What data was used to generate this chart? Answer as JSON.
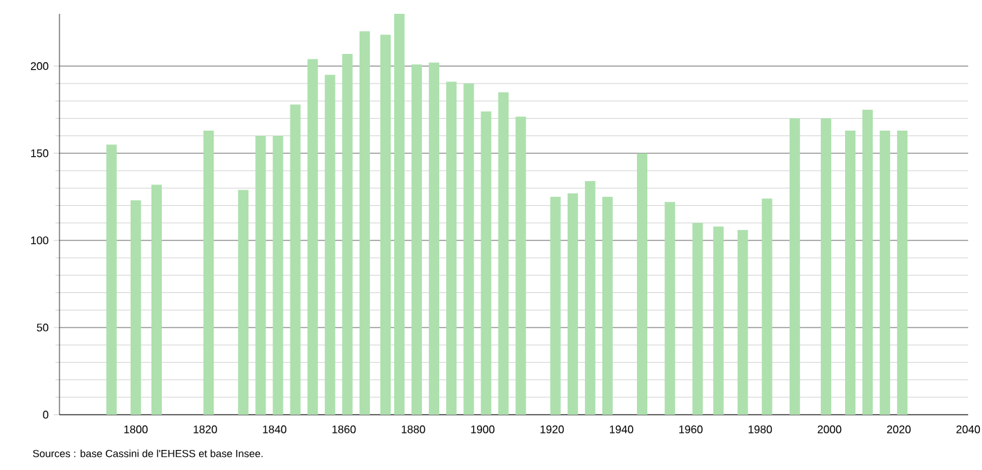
{
  "chart_data": {
    "type": "bar",
    "x": [
      1793,
      1800,
      1806,
      1821,
      1831,
      1836,
      1841,
      1846,
      1851,
      1856,
      1861,
      1866,
      1872,
      1876,
      1881,
      1886,
      1891,
      1896,
      1901,
      1906,
      1911,
      1921,
      1926,
      1931,
      1936,
      1946,
      1954,
      1962,
      1968,
      1975,
      1982,
      1990,
      1999,
      2006,
      2011,
      2016,
      2021
    ],
    "values": [
      155,
      123,
      132,
      163,
      129,
      160,
      160,
      178,
      204,
      195,
      207,
      220,
      218,
      230,
      201,
      202,
      191,
      190,
      174,
      185,
      171,
      125,
      127,
      134,
      125,
      150,
      122,
      110,
      108,
      106,
      124,
      170,
      170,
      163,
      175,
      163,
      163
    ],
    "color": "#ade0ad",
    "xlim": [
      1778,
      2040
    ],
    "xticks": [
      1800,
      1820,
      1840,
      1860,
      1880,
      1900,
      1920,
      1940,
      1960,
      1980,
      2000,
      2020,
      2040
    ],
    "ylim": [
      0,
      230
    ],
    "yticks": [
      0,
      50,
      100,
      150,
      200
    ],
    "grid": "y",
    "annotations": [
      "Sources : base Cassini de l'EHESS et base Insee."
    ]
  }
}
